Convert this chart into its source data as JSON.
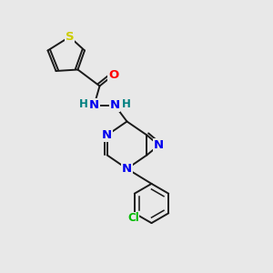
{
  "bg_color": "#e8e8e8",
  "bond_color": "#1a1a1a",
  "atom_colors": {
    "S": "#cccc00",
    "O": "#ff0000",
    "N": "#0000ee",
    "C": "#1a1a1a",
    "Cl": "#00bb00",
    "H": "#008080"
  },
  "lw": 1.4,
  "fs": 8.5,
  "fs_large": 9.5
}
